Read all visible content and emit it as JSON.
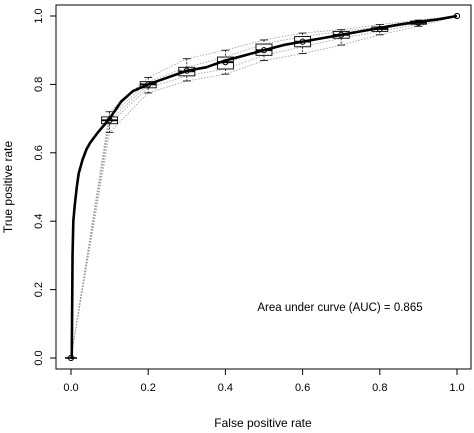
{
  "chart_data": {
    "type": "line",
    "xlabel": "False positive rate",
    "ylabel": "True positive rate",
    "xlim": [
      0,
      1
    ],
    "ylim": [
      0,
      1
    ],
    "x_ticks": [
      "0.0",
      "0.2",
      "0.4",
      "0.6",
      "0.8",
      "1.0"
    ],
    "y_ticks": [
      "0.0",
      "0.2",
      "0.4",
      "0.6",
      "0.8",
      "1.0"
    ],
    "grid": false,
    "annotation": "Area under curve (AUC) = 0.865",
    "mean_curve": {
      "x": [
        0,
        0.002,
        0.004,
        0.006,
        0.01,
        0.015,
        0.02,
        0.03,
        0.04,
        0.05,
        0.07,
        0.1,
        0.13,
        0.16,
        0.2,
        0.25,
        0.3,
        0.35,
        0.4,
        0.45,
        0.5,
        0.55,
        0.6,
        0.65,
        0.7,
        0.75,
        0.8,
        0.85,
        0.9,
        0.95,
        1.0
      ],
      "y": [
        0,
        0,
        0.3,
        0.4,
        0.45,
        0.5,
        0.54,
        0.58,
        0.61,
        0.63,
        0.66,
        0.7,
        0.75,
        0.78,
        0.8,
        0.82,
        0.84,
        0.85,
        0.87,
        0.885,
        0.9,
        0.915,
        0.925,
        0.935,
        0.945,
        0.955,
        0.965,
        0.975,
        0.983,
        0.99,
        1.0
      ]
    },
    "boxplots": [
      {
        "x": 0.0,
        "min": 0.0,
        "q1": 0.0,
        "median": 0.0,
        "q3": 0.0,
        "max": 0.0,
        "mean": 0.0
      },
      {
        "x": 0.1,
        "min": 0.66,
        "q1": 0.685,
        "median": 0.695,
        "q3": 0.705,
        "max": 0.72,
        "mean": 0.695
      },
      {
        "x": 0.2,
        "min": 0.775,
        "q1": 0.79,
        "median": 0.8,
        "q3": 0.808,
        "max": 0.82,
        "mean": 0.8
      },
      {
        "x": 0.3,
        "min": 0.81,
        "q1": 0.825,
        "median": 0.838,
        "q3": 0.85,
        "max": 0.875,
        "mean": 0.84
      },
      {
        "x": 0.4,
        "min": 0.83,
        "q1": 0.845,
        "median": 0.865,
        "q3": 0.88,
        "max": 0.9,
        "mean": 0.865
      },
      {
        "x": 0.5,
        "min": 0.87,
        "q1": 0.885,
        "median": 0.9,
        "q3": 0.918,
        "max": 0.93,
        "mean": 0.9
      },
      {
        "x": 0.6,
        "min": 0.89,
        "q1": 0.91,
        "median": 0.925,
        "q3": 0.94,
        "max": 0.95,
        "mean": 0.925
      },
      {
        "x": 0.7,
        "min": 0.915,
        "q1": 0.935,
        "median": 0.945,
        "q3": 0.955,
        "max": 0.96,
        "mean": 0.945
      },
      {
        "x": 0.8,
        "min": 0.945,
        "q1": 0.955,
        "median": 0.962,
        "q3": 0.968,
        "max": 0.975,
        "mean": 0.962
      },
      {
        "x": 0.9,
        "min": 0.97,
        "q1": 0.976,
        "median": 0.98,
        "q3": 0.985,
        "max": 0.988,
        "mean": 0.98
      },
      {
        "x": 1.0,
        "min": 1.0,
        "q1": 1.0,
        "median": 1.0,
        "q3": 1.0,
        "max": 1.0,
        "mean": 1.0
      }
    ],
    "colors": {
      "mean_curve": "#000000",
      "replicate_curves": "#9a9a9a",
      "box": "#000000"
    }
  }
}
